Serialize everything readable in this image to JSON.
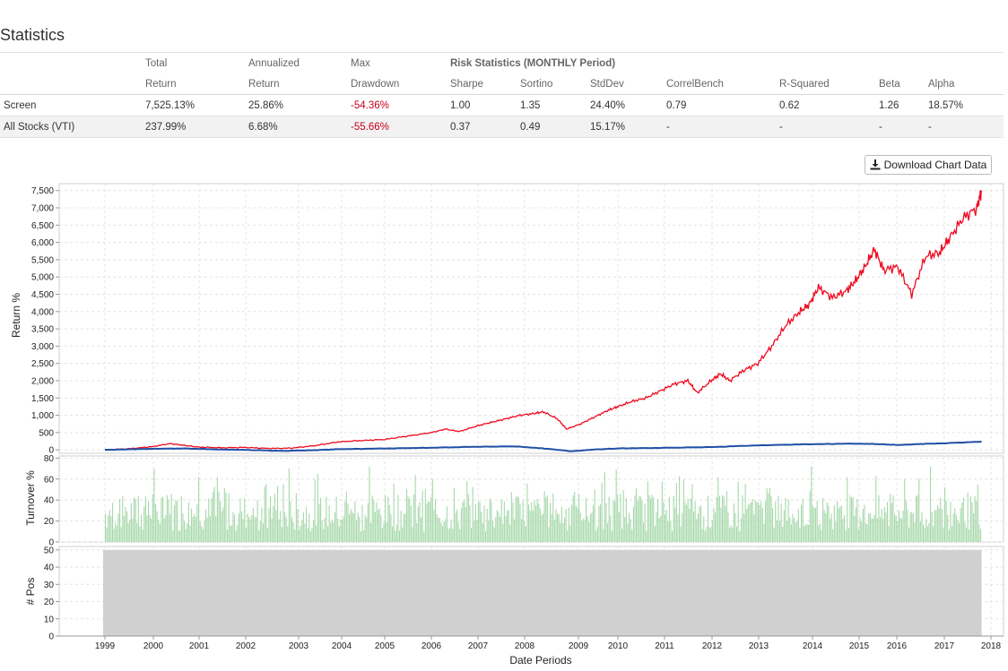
{
  "page": {
    "title": "Statistics"
  },
  "table": {
    "header1": [
      "",
      "Total",
      "Annualized",
      "Max",
      "Risk Statistics (MONTHLY Period)"
    ],
    "header2": [
      "",
      "Return",
      "Return",
      "Drawdown",
      "Sharpe",
      "Sortino",
      "StdDev",
      "CorrelBench",
      "R-Squared",
      "Beta",
      "Alpha"
    ],
    "rows": [
      [
        "Screen",
        "7,525.13%",
        "25.86%",
        "-54.36%",
        "1.00",
        "1.35",
        "24.40%",
        "0.79",
        "0.62",
        "1.26",
        "18.57%"
      ],
      [
        "All Stocks (VTI)",
        "237.99%",
        "6.68%",
        "-55.66%",
        "0.37",
        "0.49",
        "15.17%",
        "-",
        "-",
        "-",
        "-"
      ]
    ]
  },
  "download": {
    "label": "Download Chart Data",
    "icon": "download-icon"
  },
  "colors": {
    "screen": "#ee0a1f",
    "benchmark": "#1f4fa6",
    "turnover": "#a6d8aa",
    "positions": "#d0d0d0",
    "negative": "#c4001d"
  },
  "chart_data": [
    {
      "type": "line",
      "title": "",
      "ylabel": "Return %",
      "ylim": [
        -100,
        7700
      ],
      "yticks": [
        0,
        500,
        1000,
        1500,
        2000,
        2500,
        3000,
        3500,
        4000,
        4500,
        5000,
        5500,
        6000,
        6500,
        7000,
        7500
      ],
      "ytick_labels": [
        "0",
        "500",
        "1,000",
        "1,500",
        "2,000",
        "2,500",
        "3,000",
        "3,500",
        "4,000",
        "4,500",
        "5,000",
        "5,500",
        "6,000",
        "6,500",
        "7,000",
        "7,500"
      ],
      "series": [
        {
          "name": "Screen",
          "x": [
            1999.0,
            1999.5,
            2000.0,
            2000.4,
            2000.7,
            2001.0,
            2001.5,
            2002.0,
            2002.5,
            2003.0,
            2003.5,
            2004.0,
            2004.5,
            2005.0,
            2005.5,
            2006.0,
            2006.3,
            2006.6,
            2007.0,
            2007.3,
            2007.6,
            2007.9,
            2008.2,
            2008.4,
            2008.7,
            2008.9,
            2009.2,
            2009.5,
            2009.8,
            2010.0,
            2010.3,
            2010.6,
            2010.9,
            2011.2,
            2011.5,
            2011.7,
            2012.0,
            2012.2,
            2012.4,
            2012.7,
            2013.0,
            2013.3,
            2013.6,
            2013.9,
            2014.1,
            2014.3,
            2014.6,
            2014.9,
            2015.1,
            2015.3,
            2015.5,
            2015.7,
            2016.0,
            2016.3,
            2016.6,
            2016.9,
            2017.1,
            2017.4,
            2017.7,
            2017.8
          ],
          "values": [
            0,
            30,
            90,
            180,
            130,
            80,
            60,
            70,
            40,
            50,
            120,
            230,
            270,
            300,
            400,
            500,
            600,
            530,
            700,
            800,
            900,
            1000,
            1050,
            1100,
            900,
            600,
            750,
            950,
            1150,
            1250,
            1400,
            1500,
            1700,
            1900,
            2000,
            1650,
            2000,
            2200,
            2000,
            2300,
            2500,
            3000,
            3600,
            4000,
            4200,
            4700,
            4400,
            4600,
            4900,
            5300,
            5800,
            5200,
            5300,
            4500,
            5600,
            5700,
            6100,
            6700,
            7000,
            7500
          ]
        },
        {
          "name": "All Stocks (VTI)",
          "x": [
            1999.0,
            1999.5,
            2000.0,
            2000.7,
            2001.5,
            2002.0,
            2002.8,
            2003.5,
            2004.0,
            2005.0,
            2006.0,
            2007.0,
            2007.8,
            2008.5,
            2009.0,
            2009.5,
            2010.0,
            2011.0,
            2012.0,
            2013.0,
            2014.0,
            2015.0,
            2015.5,
            2016.0,
            2016.5,
            2017.0,
            2017.8
          ],
          "values": [
            0,
            15,
            30,
            40,
            10,
            0,
            -30,
            -10,
            20,
            40,
            60,
            90,
            100,
            30,
            -40,
            10,
            40,
            60,
            80,
            130,
            160,
            180,
            170,
            140,
            170,
            190,
            238
          ]
        }
      ]
    },
    {
      "type": "bar",
      "ylabel": "Turnover %",
      "ylim": [
        0,
        82
      ],
      "yticks": [
        0,
        20,
        40,
        60,
        80
      ],
      "xrange": [
        1999.0,
        2017.8
      ],
      "values_summary": "weekly turnover, mostly 10-70%"
    },
    {
      "type": "bar",
      "ylabel": "# Pos",
      "ylim": [
        0,
        52
      ],
      "yticks": [
        0,
        10,
        20,
        30,
        40,
        50
      ],
      "xlabel": "Date Periods",
      "xrange": [
        1999.0,
        2017.8
      ],
      "constant_value": 50,
      "xtick_labels": [
        "1999",
        "2000",
        "2001",
        "2002",
        "2003",
        "2004",
        "2005",
        "2006",
        "2007",
        "2008",
        "2009",
        "2010",
        "2011",
        "2012",
        "2013",
        "2014",
        "2015",
        "2016",
        "2017",
        "2018"
      ]
    }
  ]
}
